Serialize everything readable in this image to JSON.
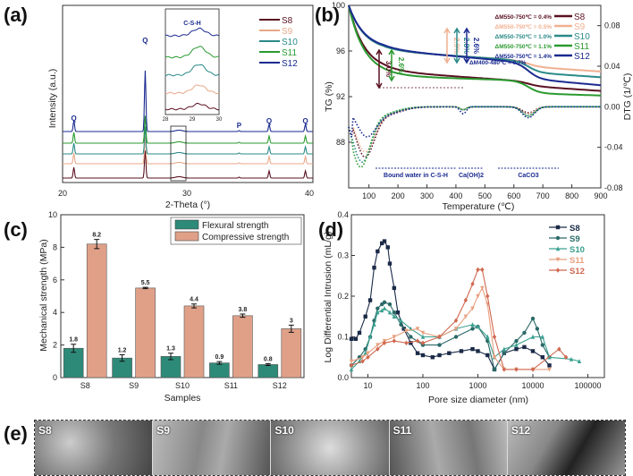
{
  "panels": {
    "a": "(a)",
    "b": "(b)",
    "c": "(c)",
    "d": "(d)",
    "e": "(e)"
  },
  "chart_data": [
    {
      "id": "a",
      "type": "line",
      "title": "",
      "xlabel": "2-Theta (°)",
      "ylabel": "Intensity (a.u.)",
      "xlim": [
        20,
        40
      ],
      "xticks": [
        "20",
        "30",
        "40"
      ],
      "series": [
        {
          "name": "S8",
          "color": "#5a1020"
        },
        {
          "name": "S9",
          "color": "#e8a888"
        },
        {
          "name": "S10",
          "color": "#2a8a88"
        },
        {
          "name": "S11",
          "color": "#2a9a30"
        },
        {
          "name": "S12",
          "color": "#1a2a90"
        }
      ],
      "peaks": [
        {
          "label": "Q",
          "x": 20.9
        },
        {
          "label": "Q",
          "x": 26.6
        },
        {
          "label": "P",
          "x": 34.1
        },
        {
          "label": "Q",
          "x": 36.5
        },
        {
          "label": "Q",
          "x": 39.4
        }
      ],
      "inset": {
        "title": "C-S-H",
        "xticks": [
          "28",
          "29",
          "30"
        ],
        "xlim": [
          28,
          30
        ],
        "peak_x": 29.3
      }
    },
    {
      "id": "b",
      "type": "line",
      "xlabel": "Temperature (℃)",
      "ylabel_left": "TG (%)",
      "ylabel_right": "DTG (1/℃)",
      "xlim": [
        30,
        900
      ],
      "ylim_left": [
        84,
        100
      ],
      "ylim_right": [
        -0.08,
        0.1
      ],
      "xticks": [
        "100",
        "200",
        "300",
        "400",
        "500",
        "600",
        "700",
        "800",
        "900"
      ],
      "yticks_left": [
        "88",
        "92",
        "96",
        "100"
      ],
      "yticks_right": [
        "-0.08",
        "-0.04",
        "0.00",
        "0.04",
        "0.08"
      ],
      "series": [
        {
          "name": "S8",
          "color": "#5a1020",
          "tg_end": 92.5
        },
        {
          "name": "S9",
          "color": "#f0b090",
          "tg_end": 94.2
        },
        {
          "name": "S10",
          "color": "#2a8a88",
          "tg_end": 93.7
        },
        {
          "name": "S11",
          "color": "#2a9a30",
          "tg_end": 92.1
        },
        {
          "name": "S12",
          "color": "#1a2a90",
          "tg_end": 93.0
        }
      ],
      "annotations": {
        "dm_550_750": [
          {
            "text": "ΔM550-750℃ = 0.4%",
            "color": "#5a1020"
          },
          {
            "text": "ΔM550-750℃ = 0.5%",
            "color": "#f0b090"
          },
          {
            "text": "ΔM550-750℃ = 1.0%",
            "color": "#2a8a88"
          },
          {
            "text": "ΔM550-750℃ = 1.1%",
            "color": "#2a9a30"
          },
          {
            "text": "ΔM550-750℃ = 1.4%",
            "color": "#1a2a90"
          }
        ],
        "dm_400_480": "ΔM400-480℃ = 0.7%",
        "arrows": [
          {
            "text": "3.0%",
            "color": "#5a1020"
          },
          {
            "text": "2.6%",
            "color": "#2a9a30"
          },
          {
            "text": "2.9%",
            "color": "#f0b090"
          },
          {
            "text": "2.8%",
            "color": "#2a8a88"
          },
          {
            "text": "2.6%",
            "color": "#1a2a90"
          }
        ],
        "regions": [
          "Bound water in C-S-H",
          "Ca(OH)2",
          "CaCO3"
        ]
      }
    },
    {
      "id": "c",
      "type": "bar",
      "xlabel": "Samples",
      "ylabel": "Mechanical strength (MPa)",
      "ylim": [
        0,
        10
      ],
      "yticks": [
        "0",
        "2",
        "4",
        "6",
        "8",
        "10"
      ],
      "categories": [
        "S8",
        "S9",
        "S10",
        "S11",
        "S12"
      ],
      "series": [
        {
          "name": "Flexural strength",
          "color": "#2e8a78",
          "values": [
            1.8,
            1.2,
            1.3,
            0.9,
            0.8
          ],
          "errors": [
            0.25,
            0.2,
            0.2,
            0.08,
            0.06
          ]
        },
        {
          "name": "Compressive strength",
          "color": "#e0a088",
          "values": [
            8.2,
            5.5,
            4.4,
            3.8,
            3.0
          ],
          "errors": [
            0.28,
            0.04,
            0.12,
            0.1,
            0.22
          ]
        }
      ],
      "legend": "top-right"
    },
    {
      "id": "d",
      "type": "line",
      "xlabel": "Pore size diameter (nm)",
      "ylabel": "Log Differential Intrusion (mL/g)",
      "xscale": "log",
      "xlim": [
        5,
        200000
      ],
      "ylim": [
        0,
        0.4
      ],
      "xticks": [
        "10",
        "100",
        "1000",
        "10000",
        "100000"
      ],
      "yticks": [
        "0.0",
        "0.1",
        "0.2",
        "0.3",
        "0.4"
      ],
      "legend": "top-right",
      "series": [
        {
          "name": "S8",
          "color": "#1a2a48",
          "marker": "square",
          "x": [
            5,
            6,
            7,
            9,
            11,
            13,
            15,
            18,
            20,
            23,
            25,
            30,
            35,
            45,
            60,
            80,
            100,
            150,
            200,
            300,
            500,
            800,
            1000,
            1500,
            2000,
            3000,
            5000,
            7000,
            10000,
            15000,
            20000
          ],
          "y": [
            0.095,
            0.095,
            0.11,
            0.15,
            0.19,
            0.27,
            0.31,
            0.33,
            0.335,
            0.32,
            0.28,
            0.22,
            0.16,
            0.12,
            0.085,
            0.06,
            0.055,
            0.05,
            0.055,
            0.06,
            0.065,
            0.07,
            0.065,
            0.055,
            0.02,
            0.06,
            0.07,
            0.075,
            0.065,
            0.05,
            0.03
          ]
        },
        {
          "name": "S9",
          "color": "#2a6a68",
          "marker": "circle",
          "x": [
            5,
            7,
            9,
            11,
            13,
            15,
            18,
            20,
            25,
            30,
            40,
            60,
            100,
            200,
            400,
            800,
            1000,
            1500,
            2000,
            3000,
            5000,
            7000,
            10000,
            12000,
            15000,
            20000
          ],
          "y": [
            0.03,
            0.05,
            0.07,
            0.1,
            0.14,
            0.17,
            0.18,
            0.185,
            0.18,
            0.16,
            0.13,
            0.1,
            0.08,
            0.08,
            0.1,
            0.12,
            0.125,
            0.09,
            0.02,
            0.06,
            0.09,
            0.11,
            0.145,
            0.12,
            0.08,
            0.05
          ]
        },
        {
          "name": "S10",
          "color": "#3aa090",
          "marker": "triangle-up",
          "x": [
            5,
            7,
            9,
            11,
            13,
            15,
            18,
            20,
            25,
            30,
            40,
            60,
            100,
            200,
            400,
            800,
            1000,
            1500,
            2000,
            3000,
            5000,
            10000,
            15000,
            20000,
            50000,
            70000
          ],
          "y": [
            0.02,
            0.04,
            0.06,
            0.1,
            0.13,
            0.16,
            0.165,
            0.17,
            0.16,
            0.15,
            0.14,
            0.12,
            0.1,
            0.1,
            0.12,
            0.13,
            0.125,
            0.1,
            0.05,
            0.07,
            0.08,
            0.1,
            0.1,
            0.05,
            0.045,
            0.04
          ]
        },
        {
          "name": "S11",
          "color": "#e8a080",
          "marker": "triangle-down",
          "x": [
            5,
            8,
            10,
            15,
            20,
            30,
            50,
            80,
            100,
            200,
            400,
            600,
            800,
            1000,
            1200,
            1500,
            2000,
            3000,
            5000,
            10000,
            20000
          ],
          "y": [
            0.04,
            0.05,
            0.06,
            0.08,
            0.09,
            0.1,
            0.115,
            0.12,
            0.11,
            0.1,
            0.12,
            0.15,
            0.17,
            0.2,
            0.22,
            0.18,
            0.05,
            0.02,
            0.02,
            0.02,
            0.02
          ]
        },
        {
          "name": "S12",
          "color": "#d06850",
          "marker": "diamond",
          "x": [
            5,
            8,
            10,
            15,
            20,
            30,
            50,
            80,
            100,
            200,
            400,
            600,
            800,
            1000,
            1200,
            1500,
            2000,
            3000,
            5000,
            10000,
            30000,
            40000
          ],
          "y": [
            0.03,
            0.04,
            0.05,
            0.07,
            0.085,
            0.09,
            0.085,
            0.09,
            0.085,
            0.1,
            0.14,
            0.19,
            0.23,
            0.265,
            0.265,
            0.2,
            0.1,
            0.02,
            0.02,
            0.02,
            0.07,
            0.05
          ]
        }
      ]
    }
  ],
  "sem_images": [
    {
      "label": "S8"
    },
    {
      "label": "S9"
    },
    {
      "label": "S10"
    },
    {
      "label": "S11"
    },
    {
      "label": "S12"
    }
  ]
}
